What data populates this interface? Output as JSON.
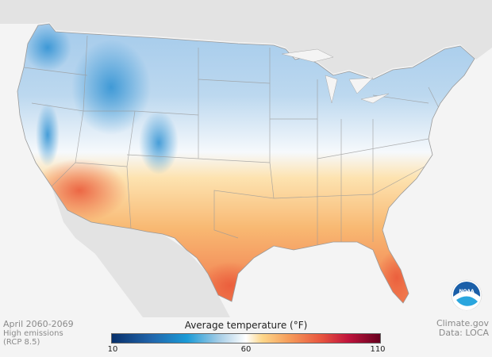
{
  "title": {
    "period": "April 2060-2069",
    "scenario_line1": "High emissions",
    "scenario_line2": "(RCP 8.5)"
  },
  "legend": {
    "title": "Average temperature (°F)",
    "min": "10",
    "mid": "60",
    "max": "110",
    "colors": [
      "#08306b",
      "#1a9ad6",
      "#ffffff",
      "#f59c5a",
      "#c0143c",
      "#67001f"
    ]
  },
  "credits": {
    "source": "Climate.gov",
    "data": "Data: LOCA"
  },
  "logo": {
    "text": "NOAA"
  },
  "map": {
    "region": "Contiguous United States",
    "variable": "Average temperature",
    "month": "April"
  }
}
